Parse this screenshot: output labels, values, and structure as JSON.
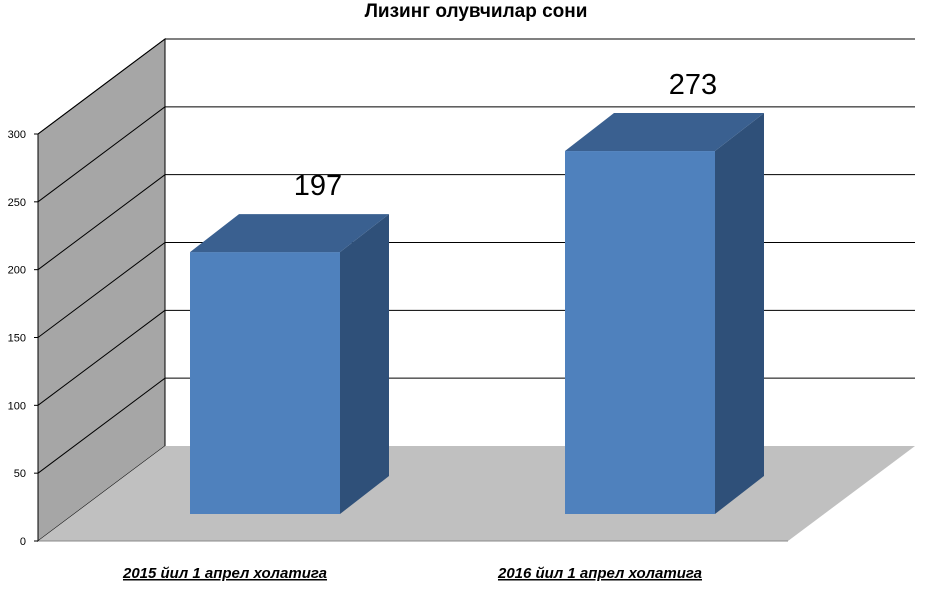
{
  "chart_data": {
    "type": "bar",
    "title": "Лизинг олувчилар сони",
    "categories": [
      "2015 йил 1 апрел холатига",
      "2016 йил 1 апрел холатига"
    ],
    "values": [
      197,
      273
    ],
    "data_labels": [
      "197",
      "273"
    ],
    "ylim": [
      0,
      300
    ],
    "yticks": [
      "0",
      "50",
      "100",
      "150",
      "200",
      "250",
      "300"
    ],
    "grid": true,
    "legend": "none",
    "style": "3d-column",
    "colors": {
      "bar_front": "#4f81bd",
      "bar_top": "#3a6090",
      "bar_side": "#2f5079",
      "back_wall": "#ffffff",
      "side_wall": "#a6a6a6",
      "floor": "#c0c0c0",
      "grid": "#000000"
    }
  }
}
